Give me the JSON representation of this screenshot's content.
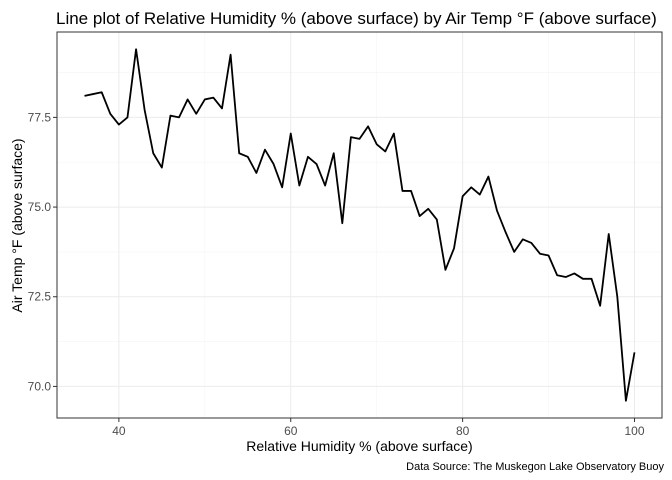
{
  "chart_data": {
    "type": "line",
    "title": "Line plot of Relative Humidity % (above surface) by Air Temp °F (above surface)",
    "xlabel": "Relative Humidity % (above surface)",
    "ylabel": "Air Temp °F (above surface)",
    "caption": "Data Source: The Muskegon Lake Observatory Buoy",
    "xlim": [
      32.8,
      103.2
    ],
    "ylim": [
      69.12,
      79.88
    ],
    "x_ticks": [
      40,
      60,
      80,
      100
    ],
    "y_ticks": [
      70.0,
      72.5,
      75.0,
      77.5
    ],
    "x_tick_labels": [
      "40",
      "60",
      "80",
      "100"
    ],
    "y_tick_labels": [
      "70.0",
      "72.5",
      "75.0",
      "77.5"
    ],
    "grid": true,
    "series": [
      {
        "color": "#000000",
        "x": [
          36,
          37,
          38,
          39,
          40,
          41,
          42,
          43,
          44,
          45,
          46,
          47,
          48,
          49,
          50,
          51,
          52,
          53,
          54,
          55,
          56,
          57,
          58,
          59,
          60,
          61,
          62,
          63,
          64,
          65,
          66,
          67,
          68,
          69,
          70,
          71,
          72,
          73,
          74,
          75,
          76,
          77,
          78,
          79,
          80,
          81,
          82,
          83,
          84,
          85,
          86,
          87,
          88,
          89,
          90,
          91,
          92,
          93,
          94,
          95,
          96,
          97,
          98,
          99,
          100
        ],
        "y": [
          78.1,
          78.15,
          78.2,
          77.6,
          77.3,
          77.5,
          79.4,
          77.7,
          76.5,
          76.1,
          77.55,
          77.5,
          78.0,
          77.6,
          78.0,
          78.05,
          77.75,
          79.25,
          76.5,
          76.4,
          75.95,
          76.6,
          76.2,
          75.55,
          77.05,
          75.6,
          76.4,
          76.2,
          75.6,
          76.5,
          74.55,
          76.95,
          76.9,
          77.25,
          76.75,
          76.55,
          77.05,
          75.45,
          75.45,
          74.75,
          74.95,
          74.65,
          73.25,
          73.85,
          75.3,
          75.55,
          75.35,
          75.85,
          74.9,
          74.3,
          73.75,
          74.1,
          74.0,
          73.7,
          73.65,
          73.1,
          73.05,
          73.15,
          73.0,
          73.0,
          72.25,
          74.25,
          72.5,
          69.6,
          70.95
        ]
      }
    ]
  }
}
